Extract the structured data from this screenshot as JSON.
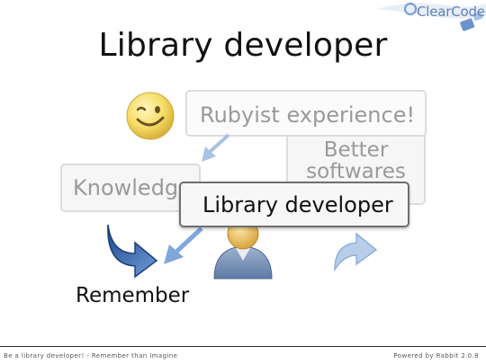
{
  "slide": {
    "title": "Library developer",
    "boxes": {
      "rubyist": "Rubyist experience!",
      "better_line1": "Better",
      "better_line2": "softwares",
      "knowledge": "Knowledge",
      "library": "Library developer"
    },
    "remember": "Remember"
  },
  "logo": {
    "text": "ClearCode"
  },
  "footer": {
    "left": "Be a library developer! - Remember than Imagine",
    "right": "Powered by Rabbit 2.0.8"
  },
  "colors": {
    "accent_blue": "#3a6bb0",
    "faded_blue": "#a9c2e3",
    "smiley_yellow": "#f5d94a"
  },
  "icons": [
    "clearcode-logo-icon",
    "smiley-icon",
    "user-icon",
    "curved-arrow-icon",
    "up-arrow-icon",
    "down-left-arrow-icon"
  ]
}
